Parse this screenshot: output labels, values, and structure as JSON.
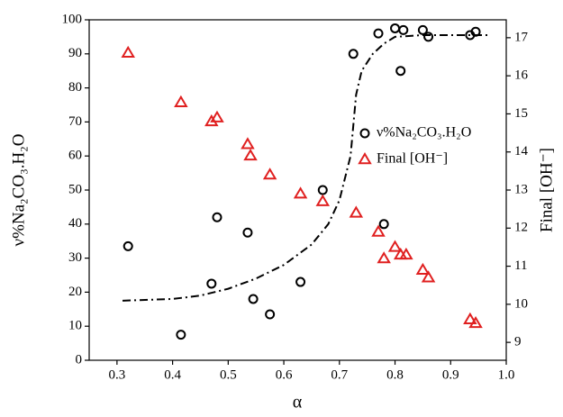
{
  "chart_data": {
    "type": "scatter",
    "xlabel": "α",
    "ylabel": "ν%Na₂CO₃.H₂O",
    "y2label": "Final [OH⁻]",
    "xlim": [
      0.25,
      1.0
    ],
    "xticks": [
      0.3,
      0.4,
      0.5,
      0.6,
      0.7,
      0.8,
      0.9,
      {
        "value": 1.0,
        "label": "1.0"
      }
    ],
    "ylim": [
      0,
      100
    ],
    "yticks": [
      0,
      10,
      20,
      30,
      40,
      50,
      60,
      70,
      80,
      90,
      100
    ],
    "y2lim": [
      8.53,
      17.47
    ],
    "y2ticks": [
      9,
      10,
      11,
      12,
      13,
      14,
      15,
      16,
      17
    ],
    "grid": false,
    "legend": "right",
    "series": [
      {
        "name": "ν%Na₂CO₃.H₂O",
        "color": "#000000",
        "marker": "circle",
        "axis": "y",
        "x": [
          0.32,
          0.415,
          0.47,
          0.48,
          0.535,
          0.545,
          0.575,
          0.63,
          0.67,
          0.725,
          0.77,
          0.78,
          0.8,
          0.81,
          0.815,
          0.85,
          0.86,
          0.935,
          0.945
        ],
        "values": [
          33.5,
          7.5,
          22.5,
          42,
          37.5,
          18,
          13.5,
          23,
          50,
          90,
          96,
          40,
          97.5,
          85,
          97,
          97,
          95,
          95.5,
          96.5
        ]
      },
      {
        "name": "Final [OH⁻]",
        "color": "#e02020",
        "marker": "triangle",
        "axis": "y2",
        "x": [
          0.32,
          0.415,
          0.47,
          0.48,
          0.535,
          0.54,
          0.575,
          0.63,
          0.67,
          0.73,
          0.77,
          0.78,
          0.8,
          0.81,
          0.82,
          0.85,
          0.86,
          0.935,
          0.945
        ],
        "values": [
          16.6,
          15.3,
          14.8,
          14.9,
          14.2,
          13.9,
          13.4,
          12.9,
          12.7,
          12.4,
          11.9,
          11.2,
          11.5,
          11.3,
          11.3,
          10.9,
          10.7,
          9.6,
          9.5
        ]
      },
      {
        "color": "#000000",
        "marker": "dash-dot-line",
        "axis": "y",
        "x": [
          0.31,
          0.4,
          0.45,
          0.5,
          0.55,
          0.6,
          0.65,
          0.68,
          0.7,
          0.72,
          0.73,
          0.74,
          0.76,
          0.78,
          0.8,
          0.85,
          0.97
        ],
        "values": [
          17.5,
          18,
          19,
          21,
          24,
          28,
          34,
          40,
          47,
          60,
          78,
          85,
          90,
          93,
          95,
          95.5,
          95.5
        ]
      }
    ]
  }
}
